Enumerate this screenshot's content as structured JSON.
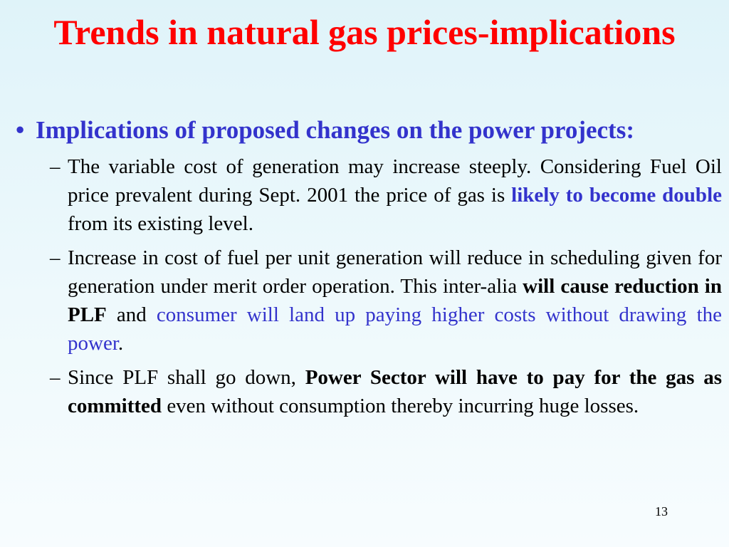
{
  "title": "Trends in natural gas prices-implications",
  "bullet": {
    "marker": "•",
    "text": "Implications of proposed changes on the power projects:"
  },
  "subpoints": [
    {
      "marker": "–",
      "text_before": "The variable cost of generation may increase steeply. Considering Fuel Oil price prevalent  during Sept. 2001 the price of gas is ",
      "emphasis": "likely to become double",
      "text_after": " from its existing level."
    },
    {
      "marker": "–",
      "text_before": "Increase in cost of fuel per unit generation will reduce in scheduling given for generation under merit order operation. This inter-alia ",
      "emphasis_bold": "will cause reduction in PLF",
      "text_middle": " and ",
      "emphasis_blue": "consumer will land up paying higher costs without drawing the power",
      "text_after": "."
    },
    {
      "marker": "–",
      "text_before": "Since PLF shall go down, ",
      "emphasis_bold": "Power Sector will have to pay for the gas as committed",
      "text_after": " even without consumption thereby incurring huge losses."
    }
  ],
  "slide_number": "13",
  "colors": {
    "title": "#ff0000",
    "heading": "#3333cc",
    "body": "#000000"
  }
}
